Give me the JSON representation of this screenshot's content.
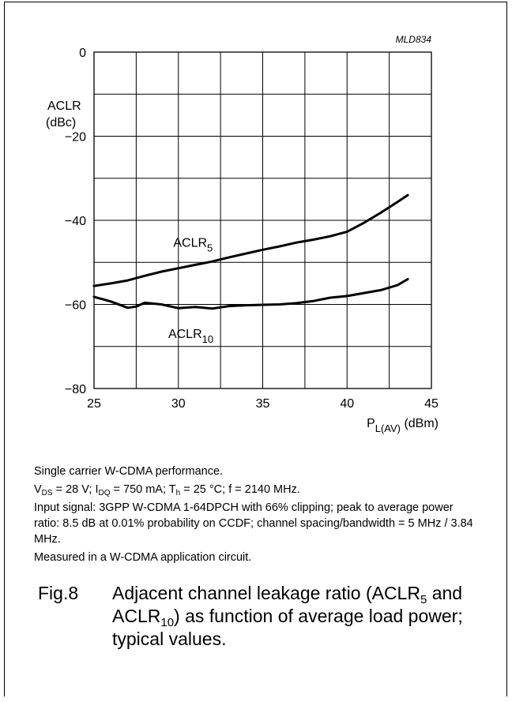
{
  "chart_data": {
    "type": "line",
    "code": "MLD834",
    "xlabel": "P",
    "xlabel_sub": "L(AV)",
    "xlabel_unit": "(dBm)",
    "ylabel": "ACLR",
    "ylabel_unit": "(dBc)",
    "xlim": [
      25,
      45
    ],
    "ylim": [
      -80,
      0
    ],
    "x_ticks": [
      25,
      30,
      35,
      40,
      45
    ],
    "y_ticks": [
      0,
      -20,
      -40,
      -60,
      -80
    ],
    "grid": true,
    "series": [
      {
        "name": "ACLR",
        "name_sub": "5",
        "x": [
          25,
          26,
          27,
          28,
          29,
          30,
          31,
          32,
          33,
          34,
          35,
          36,
          37,
          38,
          39,
          40,
          41,
          42,
          43,
          43.6
        ],
        "y": [
          -55.6,
          -55.0,
          -54.3,
          -53.2,
          -52.2,
          -51.4,
          -50.6,
          -49.8,
          -48.8,
          -47.9,
          -47.0,
          -46.2,
          -45.3,
          -44.6,
          -43.8,
          -42.7,
          -40.6,
          -38.2,
          -35.6,
          -34.0
        ]
      },
      {
        "name": "ACLR",
        "name_sub": "10",
        "x": [
          25,
          26,
          27,
          27.5,
          28,
          29,
          30,
          31,
          32,
          33,
          34,
          35,
          36,
          37,
          38,
          39,
          40,
          41,
          42,
          43,
          43.6
        ],
        "y": [
          -58.2,
          -59.3,
          -60.8,
          -60.5,
          -59.6,
          -60.0,
          -60.9,
          -60.6,
          -61.0,
          -60.4,
          -60.2,
          -60.1,
          -60.0,
          -59.7,
          -59.2,
          -58.4,
          -58.0,
          -57.3,
          -56.6,
          -55.4,
          -54.0
        ]
      }
    ]
  },
  "notes": {
    "line1": "Single carrier W-CDMA performance.",
    "line2": {
      "vds_pre": "V",
      "vds_sub": "DS",
      "vds_post": " = 28 V; I",
      "idq_sub": "DQ",
      "idq_post": " = 750 mA; T",
      "th_sub": "h",
      "th_post": " = 25 °C; f = 2140 MHz."
    },
    "line3": "Input signal: 3GPP W-CDMA 1-64DPCH with 66% clipping; peak to average power ratio: 8.5 dB at 0.01% probability on CCDF; channel spacing/bandwidth = 5 MHz / 3.84 MHz.",
    "line4": "Measured in a W-CDMA application circuit."
  },
  "caption": {
    "fig": "Fig.8",
    "t1": "Adjacent channel leakage ratio (ACLR",
    "s1": "5",
    "t2": " and ACLR",
    "s2": "10",
    "t3": ") as function of average load power; typical values."
  }
}
